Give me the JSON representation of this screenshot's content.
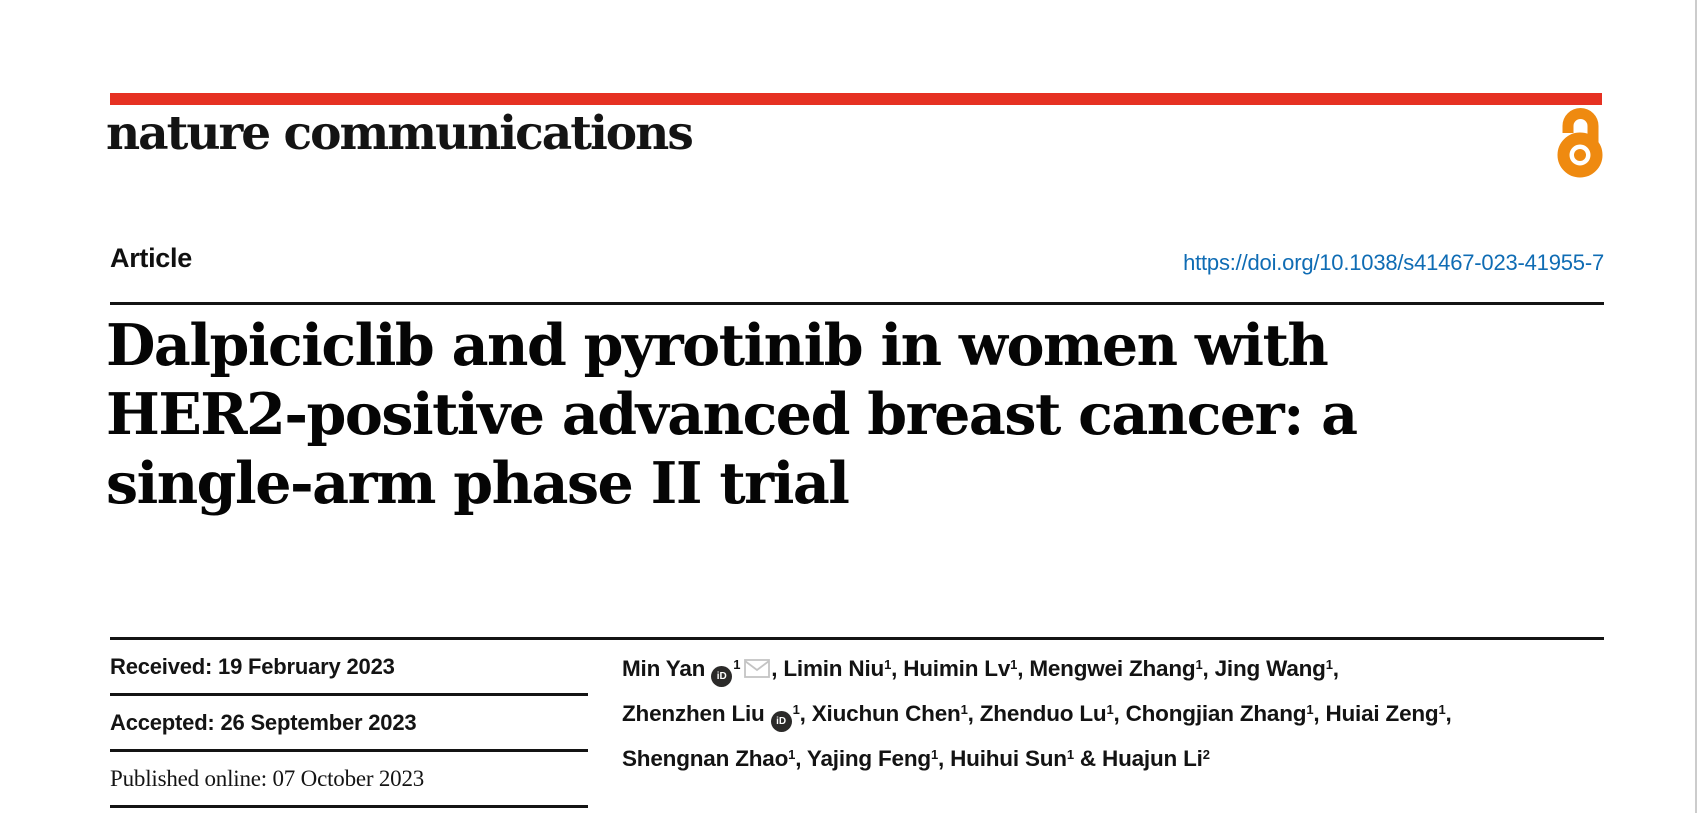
{
  "brand": {
    "journal_name": "nature communications",
    "bar_color": "#e63122",
    "open_access_color": "#ef8a10"
  },
  "header": {
    "article_label": "Article",
    "doi": "https://doi.org/10.1038/s41467-023-41955-7",
    "doi_color": "#0f6cb4"
  },
  "title": {
    "lines": [
      "Dalpiciclib and pyrotinib in women with",
      "HER2-positive advanced breast cancer: a",
      "single-arm phase II trial"
    ]
  },
  "dates": {
    "received": "Received: 19 February 2023",
    "accepted": "Accepted: 26 September 2023",
    "published": "Published online: 07 October 2023"
  },
  "authors": [
    {
      "name": "Min Yan",
      "sup": "1",
      "orcid": true,
      "email": true,
      "sep": ", "
    },
    {
      "name": "Limin Niu",
      "sup": "1",
      "sep": ", "
    },
    {
      "name": "Huimin Lv",
      "sup": "1",
      "sep": ", "
    },
    {
      "name": "Mengwei Zhang",
      "sup": "1",
      "sep": ", "
    },
    {
      "name": "Jing Wang",
      "sup": "1",
      "sep": ",",
      "break_after": true
    },
    {
      "name": "Zhenzhen Liu",
      "sup": "1",
      "orcid": true,
      "sep": ", "
    },
    {
      "name": "Xiuchun Chen",
      "sup": "1",
      "sep": ", "
    },
    {
      "name": "Zhenduo Lu",
      "sup": "1",
      "sep": ", "
    },
    {
      "name": "Chongjian Zhang",
      "sup": "1",
      "sep": ", "
    },
    {
      "name": "Huiai Zeng",
      "sup": "1",
      "sep": ",",
      "break_after": true
    },
    {
      "name": "Shengnan Zhao",
      "sup": "1",
      "sep": ", "
    },
    {
      "name": "Yajing Feng",
      "sup": "1",
      "sep": ", "
    },
    {
      "name": "Huihui Sun",
      "sup": "1",
      "sep": " & "
    },
    {
      "name": "Huajun Li",
      "sup": "2",
      "sep": ""
    }
  ],
  "icons": {
    "orcid_label": "iD",
    "open_access": "open-access-lock",
    "email": "envelope",
    "envelope_color": "#c4c4c4",
    "orcid_bg": "#2b2a29"
  }
}
